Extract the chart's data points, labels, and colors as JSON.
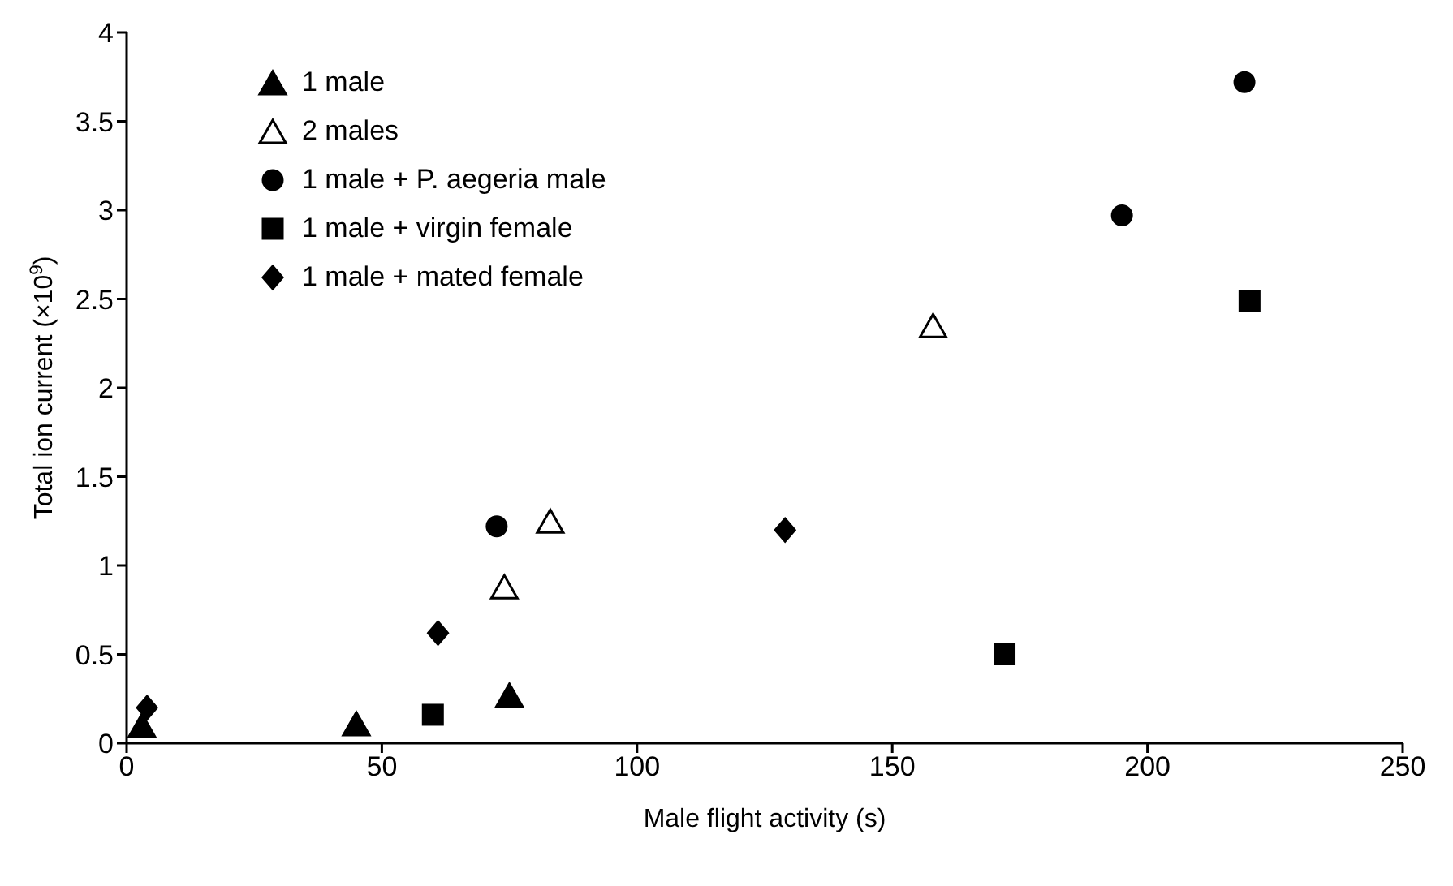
{
  "chart_data": {
    "type": "scatter",
    "xlabel": "Male flight activity (s)",
    "ylabel": "Total ion current (×10$^{9}$)",
    "xlim": [
      0,
      250
    ],
    "ylim": [
      0,
      4
    ],
    "xticks": [
      0,
      50,
      100,
      150,
      200,
      250
    ],
    "yticks": [
      0,
      0.5,
      1,
      1.5,
      2,
      2.5,
      3,
      3.5,
      4
    ],
    "grid": false,
    "legend": "top left",
    "series": [
      {
        "name": "1 male",
        "color": "#000000",
        "marker": "triangle",
        "x": [
          3,
          45,
          75
        ],
        "values": [
          0.1,
          0.11,
          0.27
        ]
      },
      {
        "name": "2 males",
        "color": "#ffffff",
        "marker": "triangle",
        "x": [
          74,
          83,
          158
        ],
        "values": [
          0.88,
          1.25,
          2.35
        ]
      },
      {
        "name": "1 male + P. aegeria male",
        "color": "#000000",
        "marker": "circle",
        "x": [
          72.5,
          195,
          219
        ],
        "values": [
          1.22,
          2.97,
          3.72
        ]
      },
      {
        "name": "1 male + virgin female",
        "color": "#000000",
        "marker": "square",
        "x": [
          60,
          172,
          220
        ],
        "values": [
          0.16,
          0.5,
          2.49
        ]
      },
      {
        "name": "1 male + mated female",
        "color": "#000000",
        "marker": "diamond",
        "x": [
          4,
          61,
          129
        ],
        "values": [
          0.2,
          0.62,
          1.2
        ]
      }
    ]
  }
}
